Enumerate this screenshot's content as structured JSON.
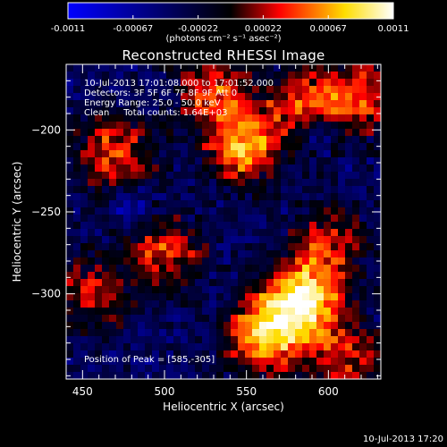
{
  "chart_data": {
    "type": "heatmap",
    "title": "Reconstructed RHESSI Image",
    "xlabel": "Heliocentric X (arcsec)",
    "ylabel": "Heliocentric Y (arcsec)",
    "xlim": [
      440,
      632
    ],
    "ylim": [
      -352,
      -160
    ],
    "xticks": [
      450,
      500,
      550,
      600
    ],
    "yticks": [
      -200,
      -250,
      -300
    ],
    "colorbar": {
      "min": -0.0011,
      "max": 0.0011,
      "ticks": [
        "-0.0011",
        "-0.00067",
        "-0.00022",
        "0.00022",
        "0.00067",
        "0.0011"
      ],
      "units_label": "(photons cm⁻² s⁻¹ asec⁻²)",
      "colormap": [
        "#0000ff",
        "#000000",
        "#ff0000",
        "#ffff00",
        "#ffffff"
      ]
    },
    "annotations": {
      "time_range": "10-Jul-2013 17:01:08.000 to 17:01:52.000",
      "detectors": "Detectors: 3F 5F 6F 7F 8F 9F Att 0",
      "energy_range": "Energy Range: 25.0 - 50.0 keV",
      "clean_counts": "Clean     Total counts: 1.64E+03",
      "peak": "Position of Peak = [585,-305]"
    },
    "peak_position": [
      585,
      -305
    ],
    "hotspots": [
      {
        "x": 585,
        "y": -305,
        "intensity": 1.0
      },
      {
        "x": 560,
        "y": -325,
        "intensity": 0.85
      },
      {
        "x": 548,
        "y": -210,
        "intensity": 0.75
      },
      {
        "x": 470,
        "y": -215,
        "intensity": 0.6
      },
      {
        "x": 500,
        "y": -275,
        "intensity": 0.55
      },
      {
        "x": 585,
        "y": -185,
        "intensity": 0.6
      },
      {
        "x": 620,
        "y": -180,
        "intensity": 0.55
      },
      {
        "x": 530,
        "y": -175,
        "intensity": 0.55
      },
      {
        "x": 600,
        "y": -270,
        "intensity": 0.5
      },
      {
        "x": 455,
        "y": -300,
        "intensity": 0.45
      },
      {
        "x": 610,
        "y": -340,
        "intensity": 0.5
      }
    ],
    "coldspots": [
      {
        "x": 590,
        "y": -200,
        "intensity": 0.6
      },
      {
        "x": 480,
        "y": -245,
        "intensity": 0.5
      }
    ]
  },
  "footer": {
    "timestamp": "10-Jul-2013 17:20"
  }
}
